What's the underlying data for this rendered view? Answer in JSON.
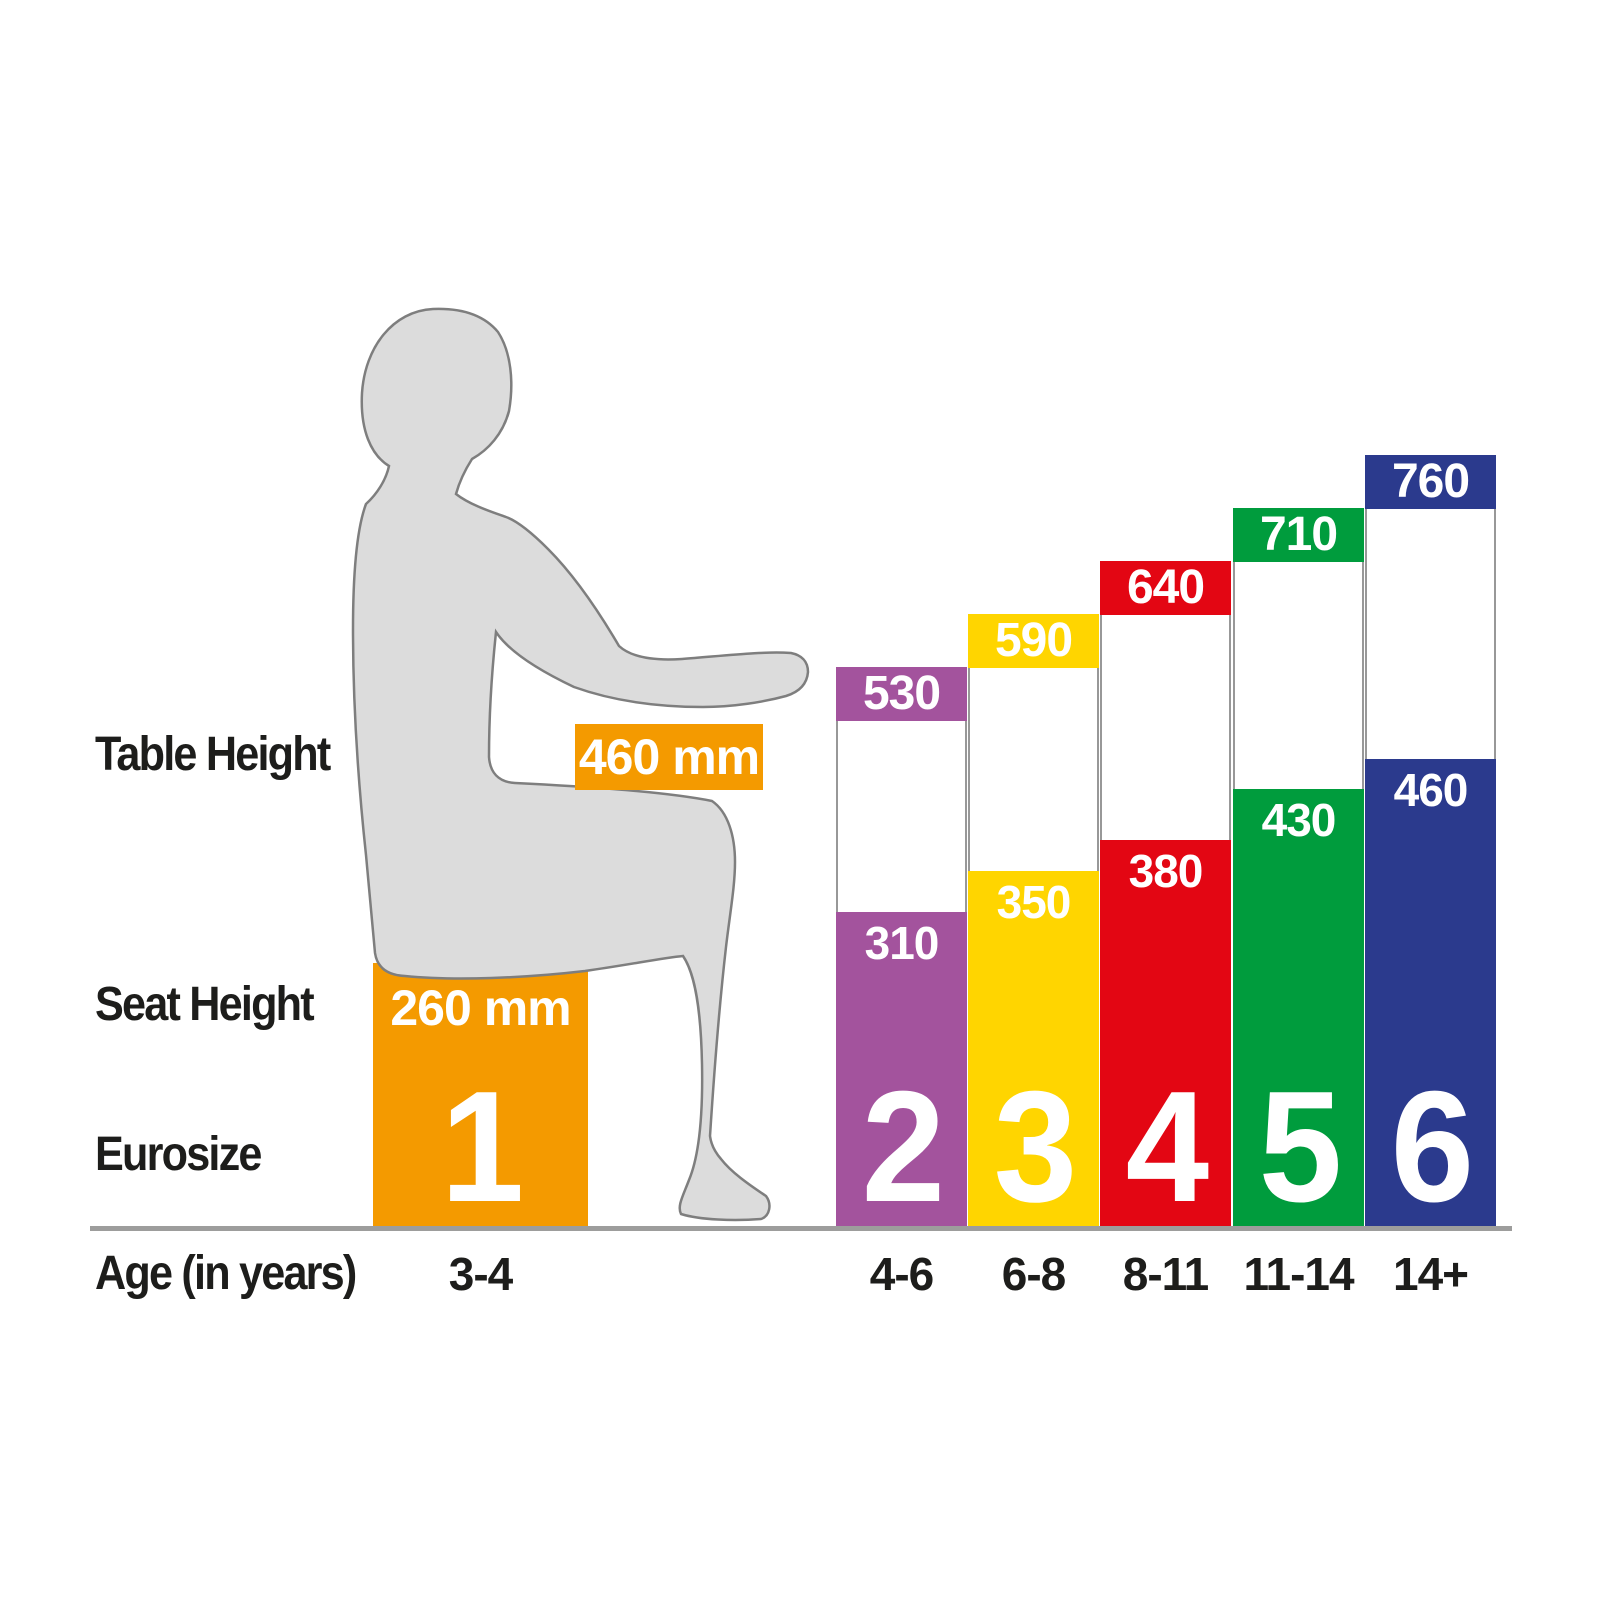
{
  "labels": {
    "table_height": "Table Height",
    "seat_height": "Seat Height",
    "eurosize": "Eurosize",
    "age": "Age (in years)"
  },
  "reference": {
    "eurosize": "1",
    "age": "3-4",
    "table_height_label": "460 mm",
    "seat_height_label": "260 mm",
    "color": "#F49A00"
  },
  "chart_data": {
    "type": "bar",
    "unit": "mm",
    "title": "",
    "categories_label": "Eurosize",
    "categories": [
      "1",
      "2",
      "3",
      "4",
      "5",
      "6"
    ],
    "ages": [
      "3-4",
      "4-6",
      "6-8",
      "8-11",
      "11-14",
      "14+"
    ],
    "series": [
      {
        "name": "Table Height",
        "values": [
          460,
          530,
          590,
          640,
          710,
          760
        ]
      },
      {
        "name": "Seat Height",
        "values": [
          260,
          310,
          350,
          380,
          430,
          460
        ]
      }
    ],
    "bar_colors": [
      "#F49A00",
      "#A3539D",
      "#FFD500",
      "#E30613",
      "#009C3D",
      "#2B3A8D"
    ],
    "value_text_color": "#FFFFFF",
    "label_text_color": "#1D1D1B",
    "baseline_color": "#9D9D9C",
    "silhouette_fill": "#DCDCDC",
    "silhouette_stroke": "#7E7E7E",
    "layout_note": "Size 1 drawn as orange seat block under seated child silhouette; sizes 2-6 drawn as columns: table-height band on top, white gap, seat-height block below"
  }
}
